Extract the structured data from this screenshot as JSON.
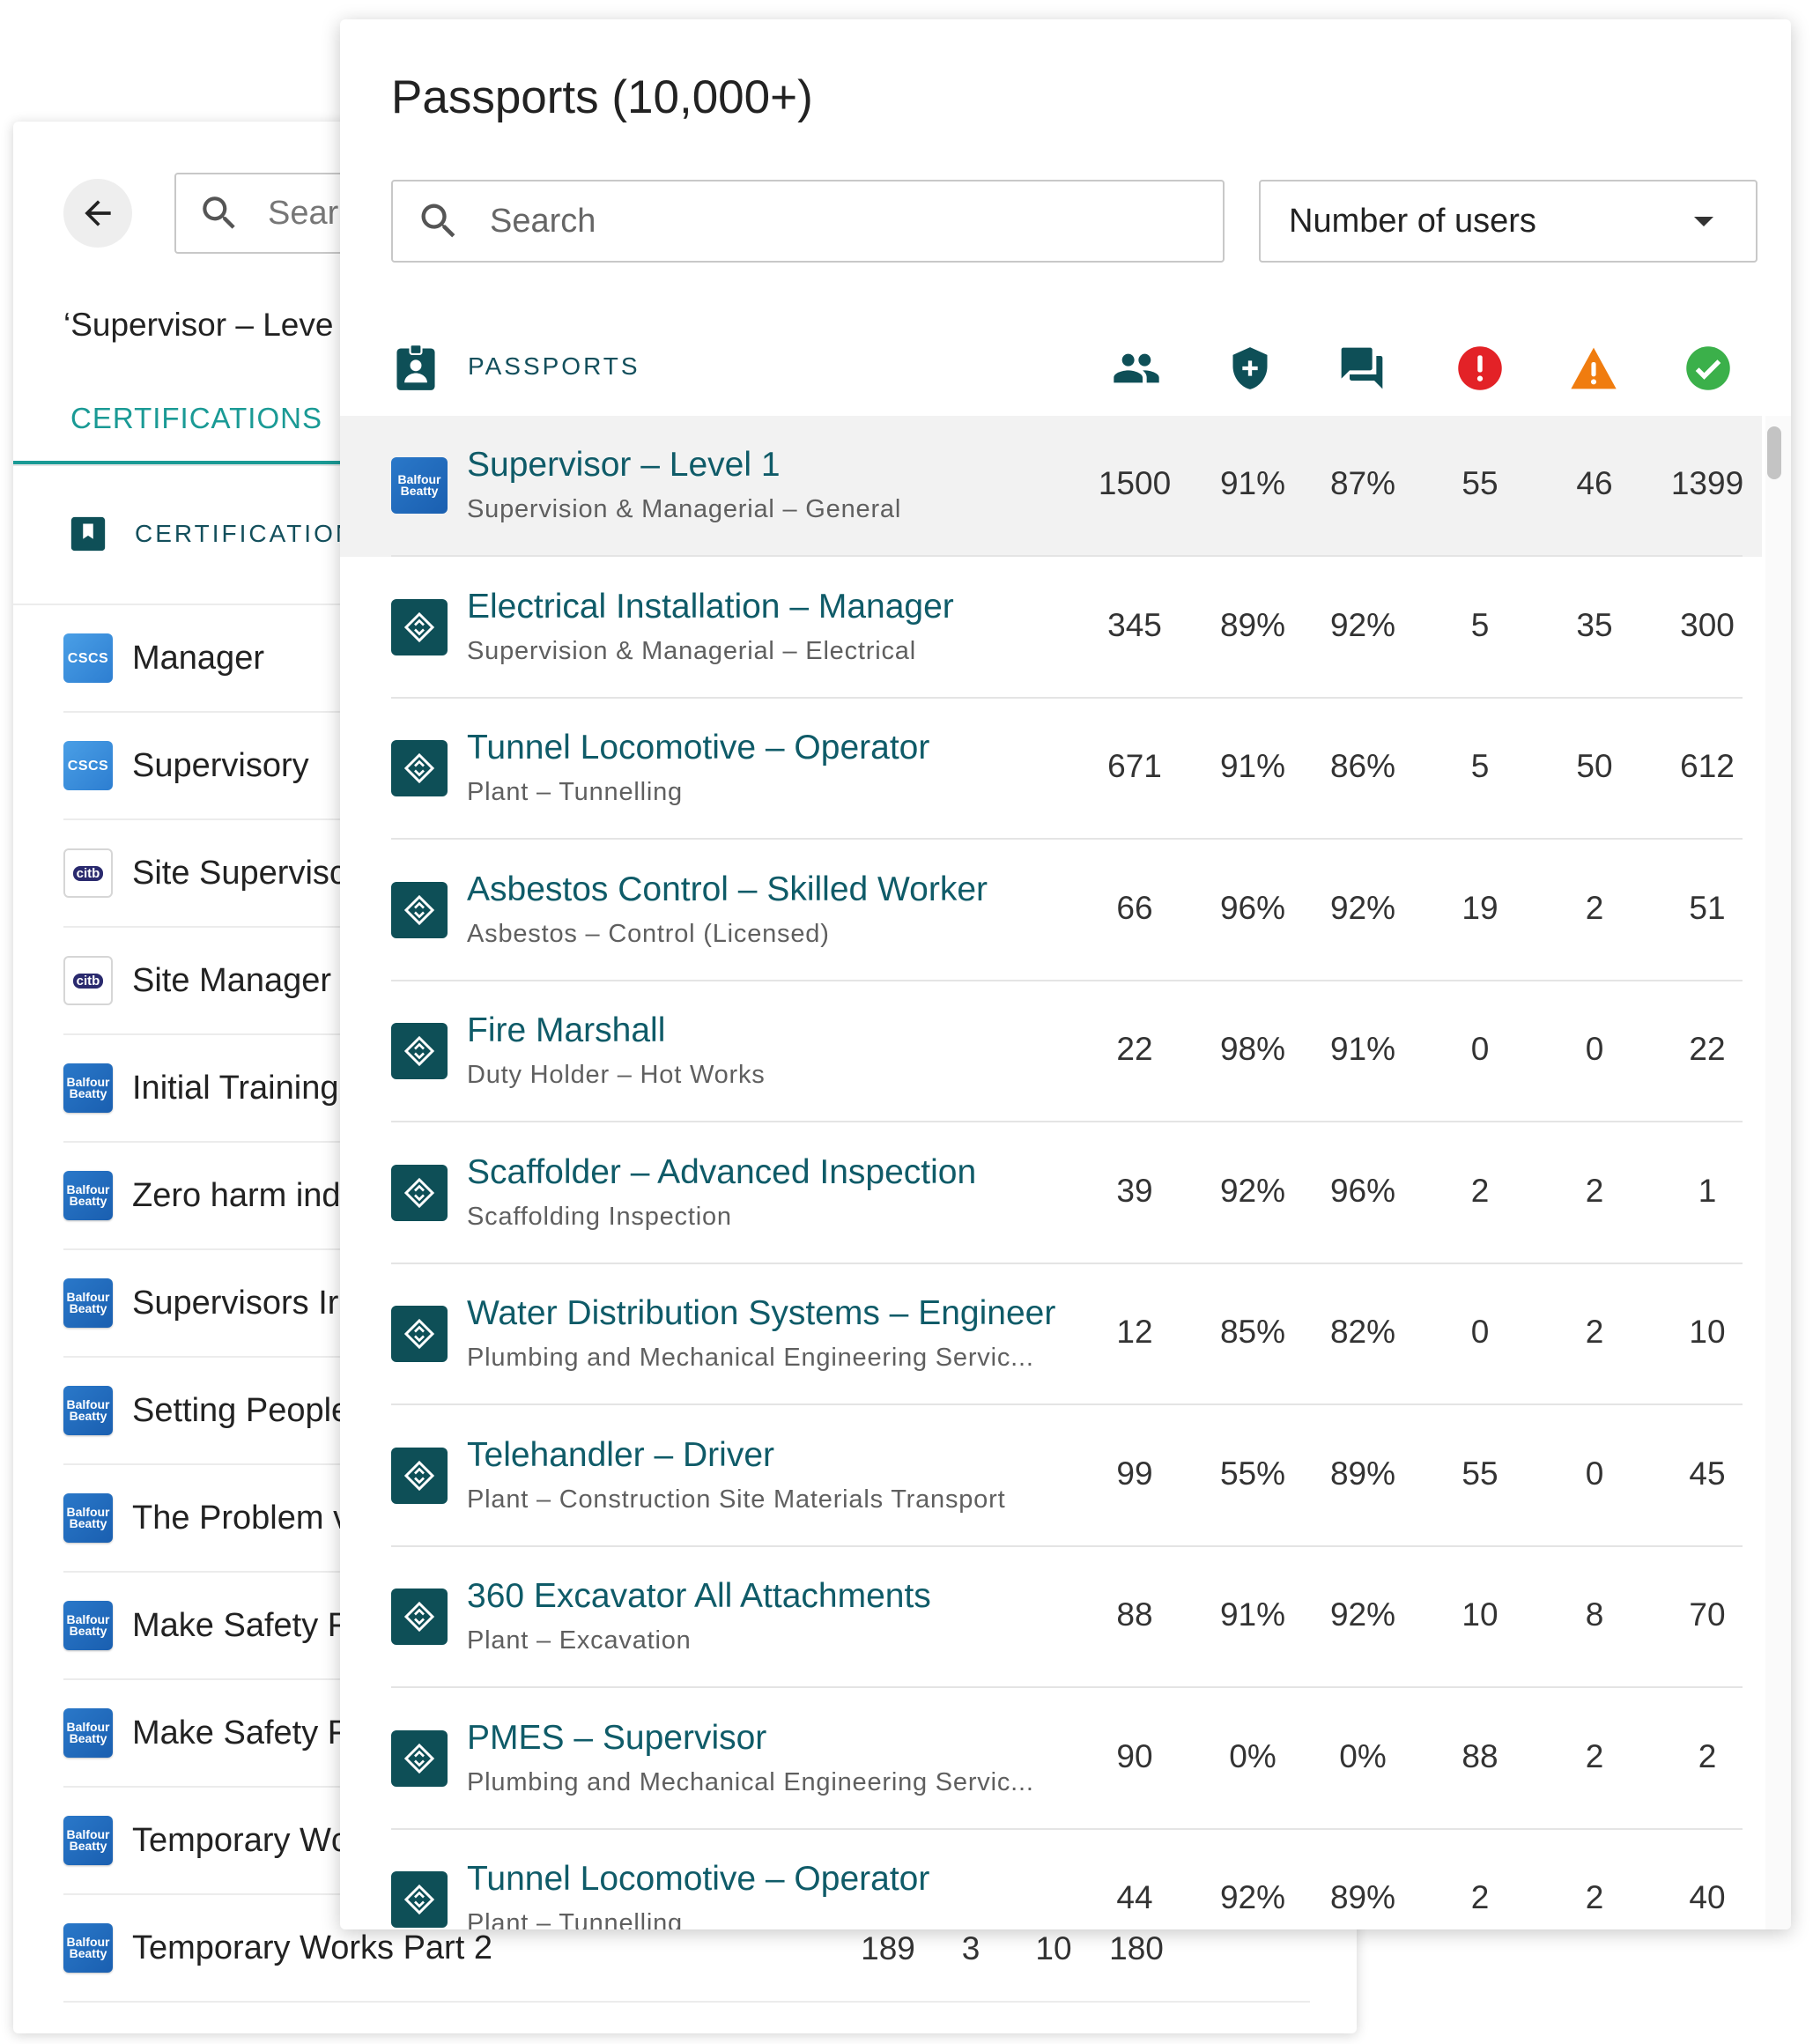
{
  "back_panel": {
    "search_placeholder": "Sear",
    "title": "‘Supervisor – Leve",
    "tab_label": "CERTIFICATIONS",
    "column_label": "CERTIFICATION",
    "rows": [
      {
        "name": "Manager",
        "logo": "cscs",
        "logo_text": "CSCS"
      },
      {
        "name": "Supervisory",
        "logo": "cscs",
        "logo_text": "CSCS"
      },
      {
        "name": "Site Supervisc",
        "logo": "citb",
        "logo_text": "citb"
      },
      {
        "name": "Site Manager",
        "logo": "citb",
        "logo_text": "citb"
      },
      {
        "name": "Initial Training",
        "logo": "bb",
        "logo_text": "Balfour Beatty"
      },
      {
        "name": "Zero harm ind",
        "logo": "bb",
        "logo_text": "Balfour Beatty"
      },
      {
        "name": "Supervisors Ir",
        "logo": "bb",
        "logo_text": "Balfour Beatty"
      },
      {
        "name": "Setting People",
        "logo": "bb",
        "logo_text": "Balfour Beatty"
      },
      {
        "name": "The Problem v",
        "logo": "bb",
        "logo_text": "Balfour Beatty"
      },
      {
        "name": "Make Safety F",
        "logo": "bb",
        "logo_text": "Balfour Beatty"
      },
      {
        "name": "Make Safety F",
        "logo": "bb",
        "logo_text": "Balfour Beatty"
      },
      {
        "name": "Temporary Wc",
        "logo": "bb",
        "logo_text": "Balfour Beatty"
      },
      {
        "name": "Temporary Works Part 2",
        "logo": "bb",
        "logo_text": "Balfour Beatty",
        "values": [
          "189",
          "3",
          "10",
          "180"
        ]
      }
    ]
  },
  "front_panel": {
    "title": "Passports (10,000+)",
    "search_placeholder": "Search",
    "sort_select": "Number of users",
    "header_label": "PASSPORTS",
    "header_icons": [
      "users-icon",
      "shield-plus-icon",
      "chat-icon",
      "error-icon",
      "warning-icon",
      "check-circle-icon"
    ],
    "colors": {
      "teal": "#0f5b68",
      "error": "#e32227",
      "warning": "#f07c0f",
      "success": "#3bb04a",
      "badge": "#0e4f57"
    },
    "rows": [
      {
        "title": "Supervisor – Level 1",
        "subtitle": "Supervision & Managerial – General",
        "badge": "bb",
        "badge_text": "Balfour Beatty",
        "values": [
          "1500",
          "91%",
          "87%",
          "55",
          "46",
          "1399"
        ]
      },
      {
        "title": "Electrical Installation – Manager",
        "subtitle": "Supervision & Managerial – Electrical",
        "badge": "pp",
        "values": [
          "345",
          "89%",
          "92%",
          "5",
          "35",
          "300"
        ]
      },
      {
        "title": "Tunnel Locomotive – Operator",
        "subtitle": "Plant – Tunnelling",
        "badge": "pp",
        "values": [
          "671",
          "91%",
          "86%",
          "5",
          "50",
          "612"
        ]
      },
      {
        "title": "Asbestos Control – Skilled Worker",
        "subtitle": "Asbestos – Control (Licensed)",
        "badge": "pp",
        "values": [
          "66",
          "96%",
          "92%",
          "19",
          "2",
          "51"
        ]
      },
      {
        "title": "Fire Marshall",
        "subtitle": "Duty Holder – Hot Works",
        "badge": "pp",
        "values": [
          "22",
          "98%",
          "91%",
          "0",
          "0",
          "22"
        ]
      },
      {
        "title": "Scaffolder – Advanced Inspection",
        "subtitle": "Scaffolding Inspection",
        "badge": "pp",
        "values": [
          "39",
          "92%",
          "96%",
          "2",
          "2",
          "1"
        ]
      },
      {
        "title": "Water Distribution Systems – Engineer",
        "subtitle": "Plumbing and Mechanical Engineering Servic...",
        "badge": "pp",
        "values": [
          "12",
          "85%",
          "82%",
          "0",
          "2",
          "10"
        ]
      },
      {
        "title": "Telehandler – Driver",
        "subtitle": "Plant – Construction Site Materials Transport",
        "badge": "pp",
        "values": [
          "99",
          "55%",
          "89%",
          "55",
          "0",
          "45"
        ]
      },
      {
        "title": "360 Excavator All Attachments",
        "subtitle": "Plant – Excavation",
        "badge": "pp",
        "values": [
          "88",
          "91%",
          "92%",
          "10",
          "8",
          "70"
        ]
      },
      {
        "title": "PMES – Supervisor",
        "subtitle": "Plumbing and Mechanical Engineering Servic...",
        "badge": "pp",
        "values": [
          "90",
          "0%",
          "0%",
          "88",
          "2",
          "2"
        ]
      },
      {
        "title": "Tunnel Locomotive – Operator",
        "subtitle": "Plant – Tunnelling",
        "badge": "pp",
        "values": [
          "44",
          "92%",
          "89%",
          "2",
          "2",
          "40"
        ]
      }
    ]
  }
}
